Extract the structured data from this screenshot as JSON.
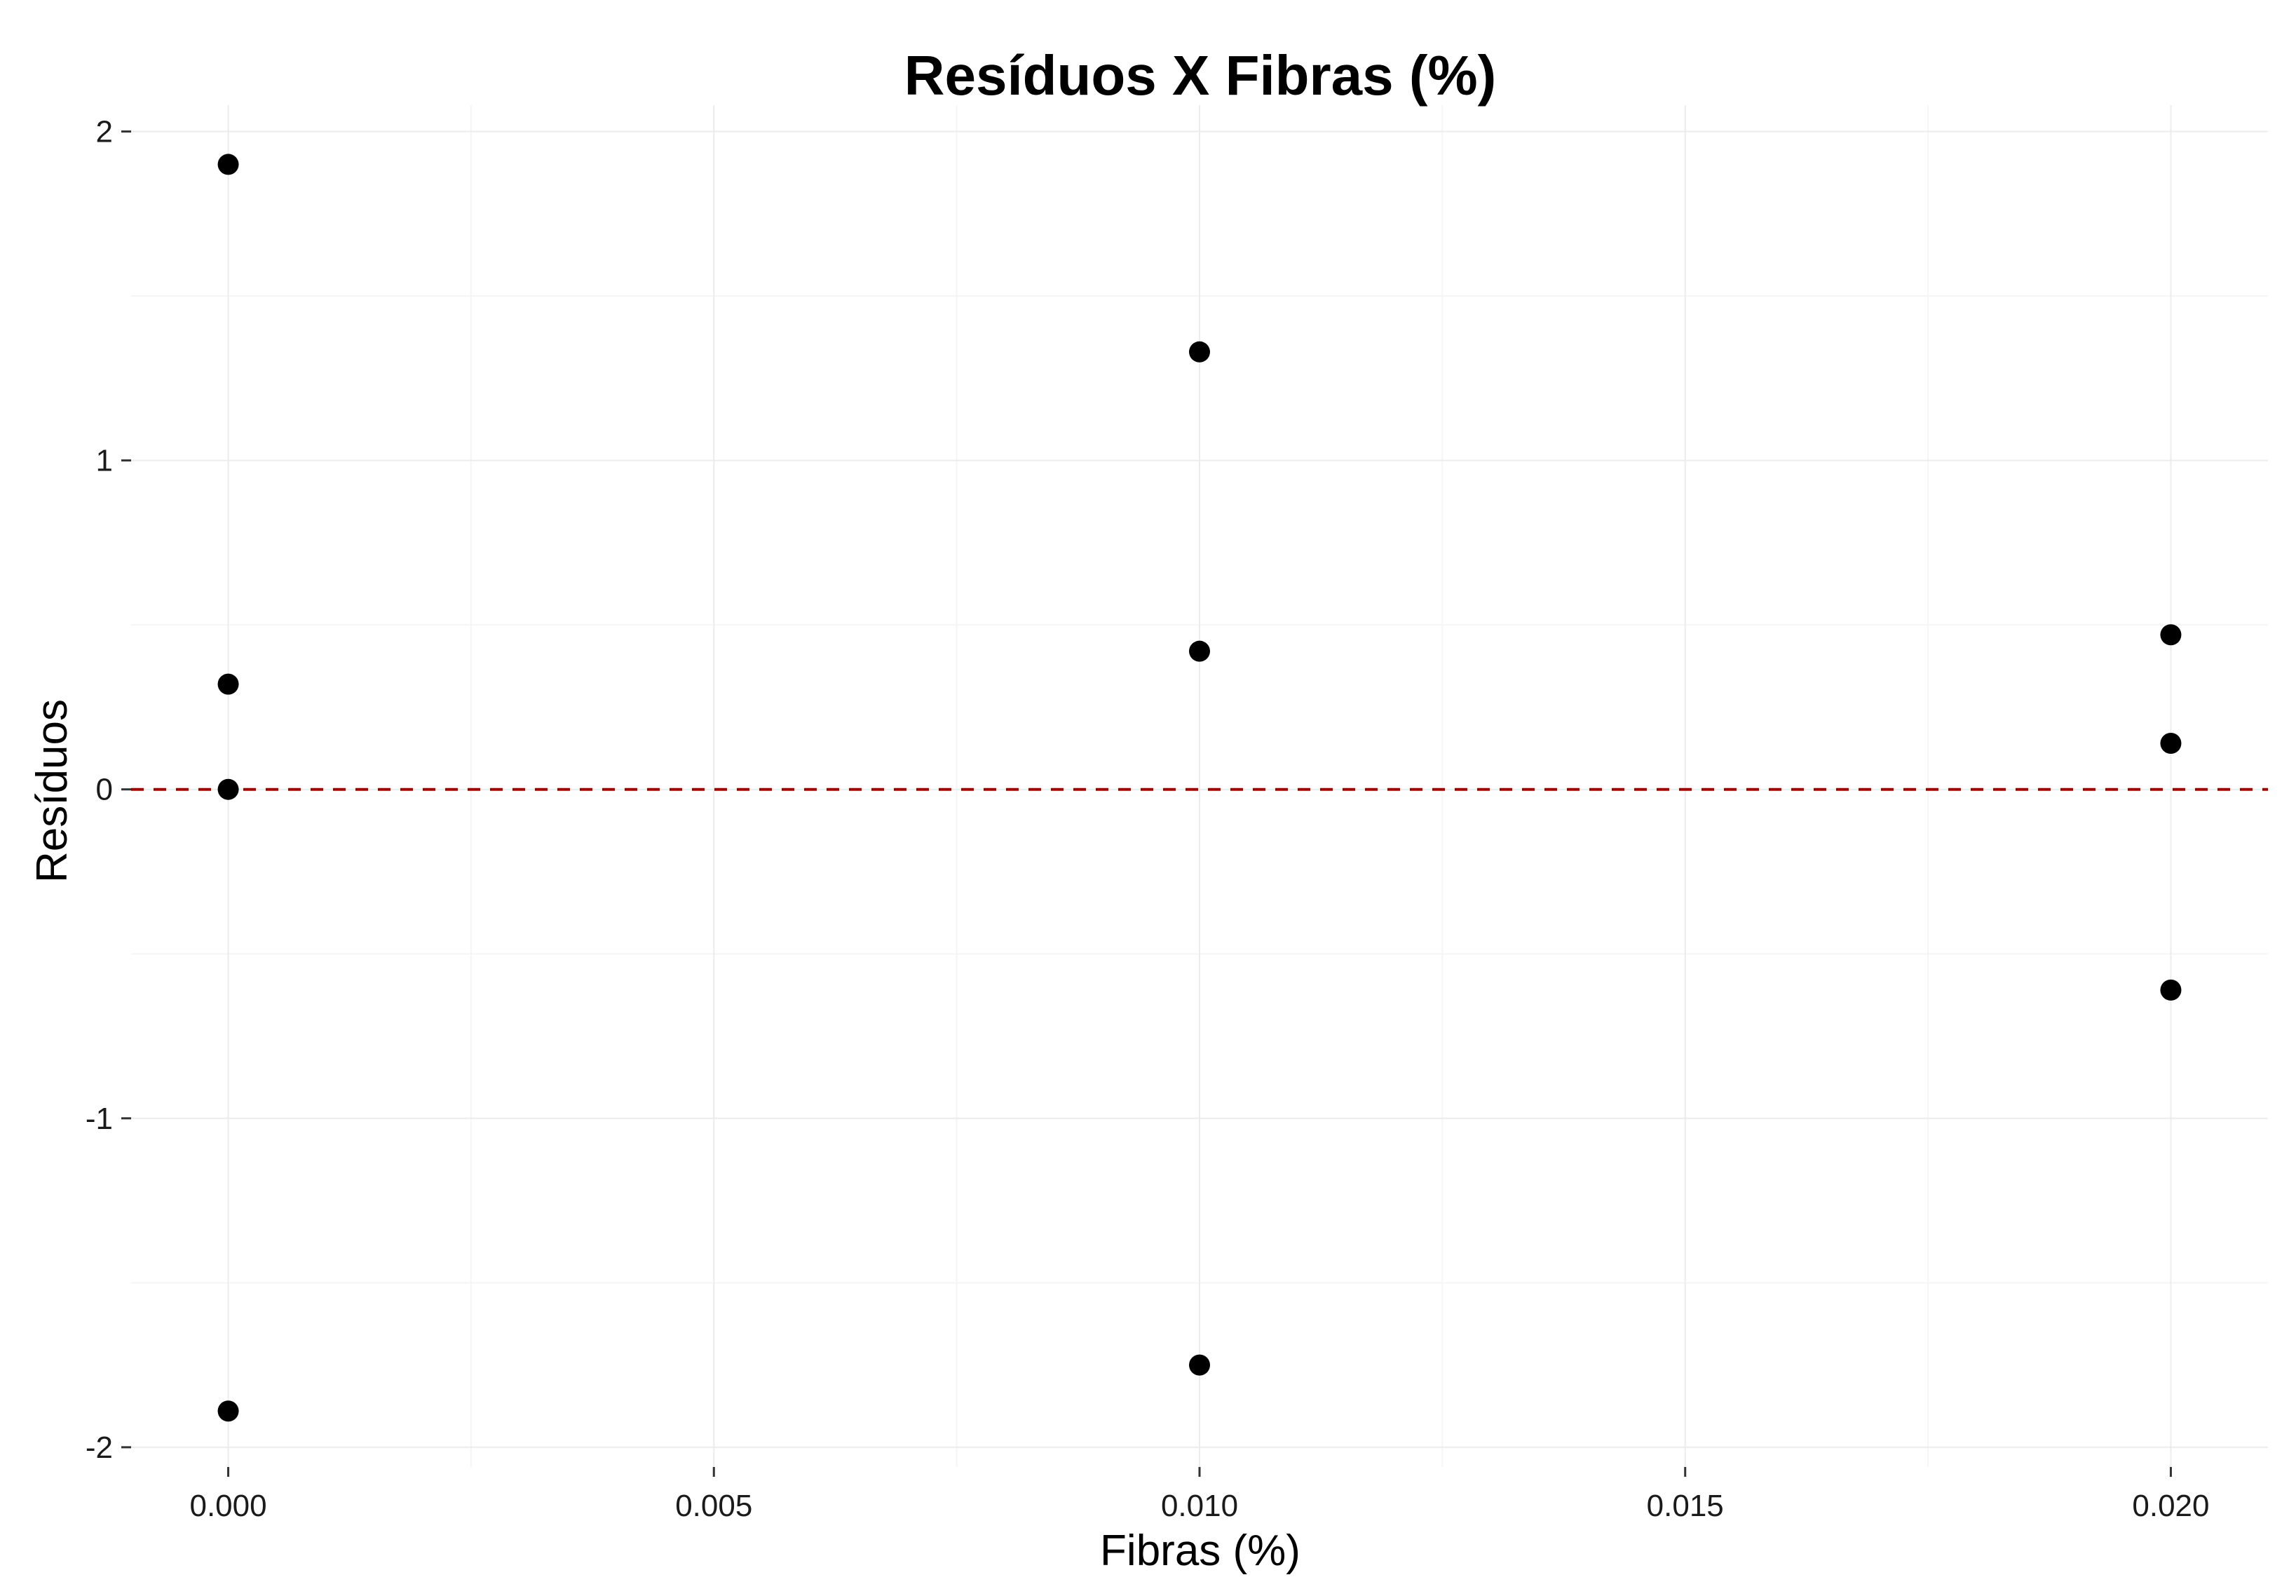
{
  "chart_data": {
    "type": "scatter",
    "title": "Resíduos X Fibras (%)",
    "xlabel": "Fibras (%)",
    "ylabel": "Resíduos",
    "xlim": [
      -0.001,
      0.021
    ],
    "ylim": [
      -2.06,
      2.08
    ],
    "x_ticks": [
      0.0,
      0.005,
      0.01,
      0.015,
      0.02
    ],
    "x_tick_labels": [
      "0.000",
      "0.005",
      "0.010",
      "0.015",
      "0.020"
    ],
    "y_ticks": [
      -2,
      -1,
      0,
      1,
      2
    ],
    "y_tick_labels": [
      "-2",
      "-1",
      "0",
      "1",
      "2"
    ],
    "grid": true,
    "reference_line": {
      "y": 0,
      "style": "dashed",
      "color": "#a50000"
    },
    "points": [
      {
        "x": 0.0,
        "y": 1.9
      },
      {
        "x": 0.0,
        "y": 0.32
      },
      {
        "x": 0.0,
        "y": 0.0
      },
      {
        "x": 0.0,
        "y": -1.89
      },
      {
        "x": 0.01,
        "y": 1.33
      },
      {
        "x": 0.01,
        "y": 0.42
      },
      {
        "x": 0.01,
        "y": -1.75
      },
      {
        "x": 0.02,
        "y": 0.47
      },
      {
        "x": 0.02,
        "y": 0.14
      },
      {
        "x": 0.02,
        "y": -0.61
      }
    ]
  }
}
